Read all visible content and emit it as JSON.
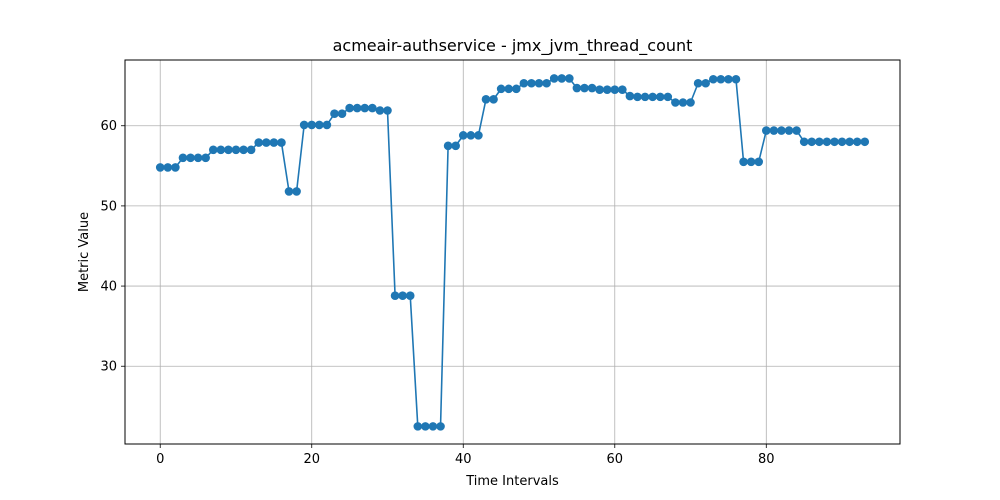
{
  "chart_data": {
    "type": "line",
    "title": "acmeair-authservice - jmx_jvm_thread_count",
    "xlabel": "Time Intervals",
    "ylabel": "Metric Value",
    "xlim": [
      -4.65,
      97.65
    ],
    "ylim": [
      20.3,
      68.2
    ],
    "xticks": [
      0,
      20,
      40,
      60,
      80
    ],
    "yticks": [
      30,
      40,
      50,
      60
    ],
    "grid": true,
    "legend": "none",
    "marker": "circle",
    "color": "#1f77b4",
    "series": [
      {
        "x": [
          0,
          1,
          2,
          3,
          4,
          5,
          6,
          7,
          8,
          9,
          10,
          11,
          12,
          13,
          14,
          15,
          16,
          17,
          18,
          19,
          20,
          21,
          22,
          23,
          24,
          25,
          26,
          27,
          28,
          29,
          30,
          31,
          32,
          33,
          34,
          35,
          36,
          37,
          38,
          39,
          40,
          41,
          42,
          43,
          44,
          45,
          46,
          47,
          48,
          49,
          50,
          51,
          52,
          53,
          54,
          55,
          56,
          57,
          58,
          59,
          60,
          61,
          62,
          63,
          64,
          65,
          66,
          67,
          68,
          69,
          70,
          71,
          72,
          73,
          74,
          75,
          76,
          77,
          78,
          79,
          80,
          81,
          82,
          83,
          84,
          85,
          86,
          87,
          88,
          89,
          90,
          91,
          92,
          93
        ],
        "values": [
          54.8,
          54.8,
          54.8,
          56.0,
          56.0,
          56.0,
          56.0,
          57.0,
          57.0,
          57.0,
          57.0,
          57.0,
          57.0,
          57.9,
          57.9,
          57.9,
          57.9,
          51.8,
          51.8,
          60.1,
          60.1,
          60.1,
          60.1,
          61.5,
          61.5,
          62.2,
          62.2,
          62.2,
          62.2,
          61.9,
          61.9,
          38.8,
          38.8,
          38.8,
          22.5,
          22.5,
          22.5,
          22.5,
          57.5,
          57.5,
          58.8,
          58.8,
          58.8,
          63.3,
          63.3,
          64.6,
          64.6,
          64.6,
          65.3,
          65.3,
          65.3,
          65.3,
          65.9,
          65.9,
          65.9,
          64.7,
          64.7,
          64.7,
          64.5,
          64.5,
          64.5,
          64.5,
          63.7,
          63.6,
          63.6,
          63.6,
          63.6,
          63.6,
          62.9,
          62.9,
          62.9,
          65.3,
          65.3,
          65.8,
          65.8,
          65.8,
          65.8,
          55.5,
          55.5,
          55.5,
          59.4,
          59.4,
          59.4,
          59.4,
          59.4,
          58.0,
          58.0,
          58.0,
          58.0,
          58.0,
          58.0,
          58.0,
          58.0,
          58.0
        ]
      }
    ]
  }
}
